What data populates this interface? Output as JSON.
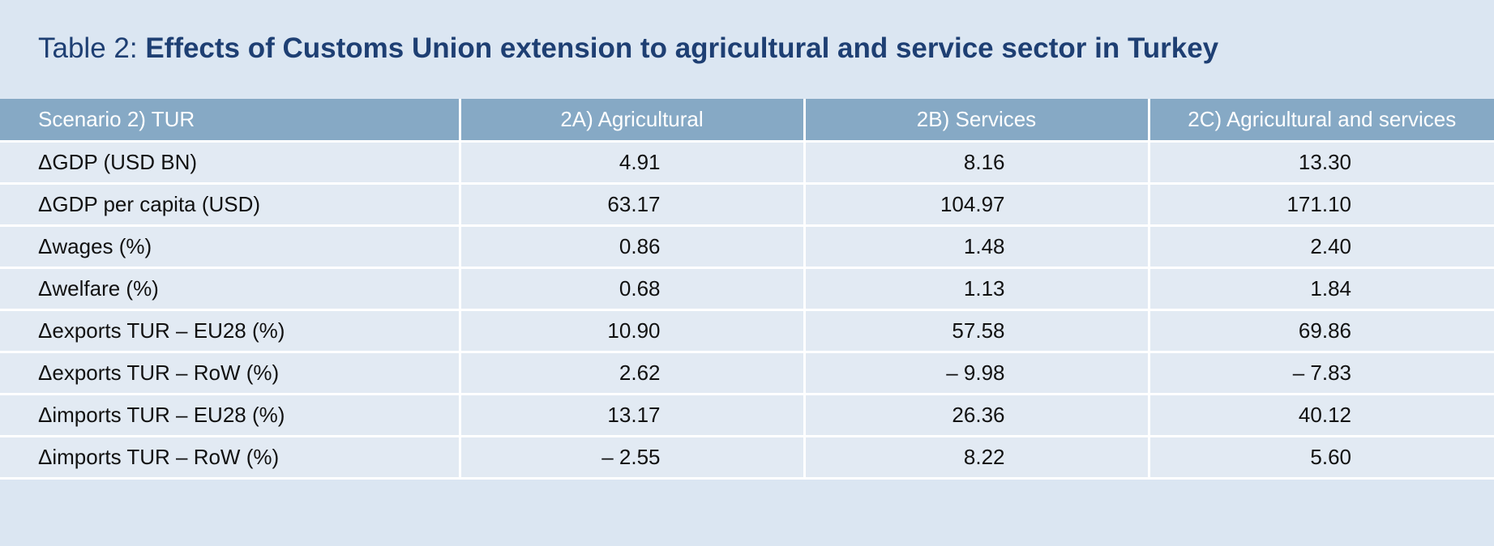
{
  "title": {
    "prefix": "Table 2: ",
    "main": "Effects of Customs Union extension to agricultural and service sector in Turkey"
  },
  "table": {
    "headers": [
      "Scenario 2) TUR",
      "2A) Agricultural",
      "2B) Services",
      "2C) Agricultural and services"
    ],
    "rows": [
      [
        "ΔGDP (USD BN)",
        "4.91",
        "8.16",
        "13.30"
      ],
      [
        "ΔGDP per capita (USD)",
        "63.17",
        "104.97",
        "171.10"
      ],
      [
        "Δwages (%)",
        "0.86",
        "1.48",
        "2.40"
      ],
      [
        "Δwelfare (%)",
        "0.68",
        "1.13",
        "1.84"
      ],
      [
        "Δexports TUR – EU28 (%)",
        "10.90",
        "57.58",
        "69.86"
      ],
      [
        "Δexports TUR – RoW (%)",
        "2.62",
        "– 9.98",
        "– 7.83"
      ],
      [
        "Δimports TUR – EU28 (%)",
        "13.17",
        "26.36",
        "40.12"
      ],
      [
        "Δimports TUR – RoW (%)",
        "– 2.55",
        "8.22",
        "5.60"
      ]
    ]
  }
}
